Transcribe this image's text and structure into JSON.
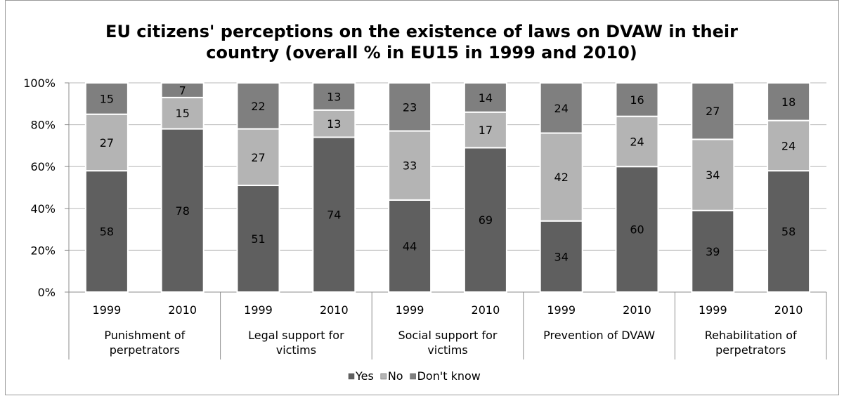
{
  "chart_data": {
    "type": "bar",
    "stacked": true,
    "title_lines": [
      "EU citizens' perceptions on the existence of laws on DVAW in their",
      "country (overall % in EU15 in 1999 and 2010)"
    ],
    "groups": [
      "Punishment of perpetrators",
      "Legal support for victims",
      "Social support for victims",
      "Prevention of DVAW",
      "Rehabilitation of perpetrators"
    ],
    "group_label_lines": [
      [
        "Punishment of",
        "perpetrators"
      ],
      [
        "Legal support for",
        "victims"
      ],
      [
        "Social support for",
        "victims"
      ],
      [
        "Prevention of DVAW"
      ],
      [
        "Rehabilitation of",
        "perpetrators"
      ]
    ],
    "years": [
      "1999",
      "2010"
    ],
    "series": [
      {
        "name": "Yes",
        "color": "#5f5f5f",
        "values": [
          58,
          78,
          51,
          74,
          44,
          69,
          34,
          60,
          39,
          58
        ]
      },
      {
        "name": "No",
        "color": "#b4b4b4",
        "values": [
          27,
          15,
          27,
          13,
          33,
          17,
          42,
          24,
          34,
          24
        ]
      },
      {
        "name": "Don't know",
        "color": "#7f7f7f",
        "values": [
          15,
          7,
          22,
          13,
          23,
          14,
          24,
          16,
          27,
          18
        ]
      }
    ],
    "y_ticks": [
      "0%",
      "20%",
      "40%",
      "60%",
      "80%",
      "100%"
    ],
    "ylim": [
      0,
      100
    ],
    "grid": true,
    "legend_position": "bottom"
  }
}
